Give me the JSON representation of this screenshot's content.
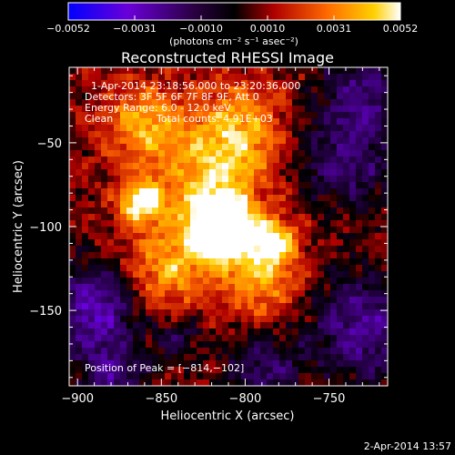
{
  "colorbar": {
    "ticks": [
      "−0.0052",
      "−0.0031",
      "−0.0010",
      "0.0010",
      "0.0031",
      "0.0052"
    ],
    "unit_label": "(photons cm⁻² s⁻¹ asec⁻²)"
  },
  "plot": {
    "title": "Reconstructed RHESSI Image",
    "xlabel": "Heliocentric X (arcsec)",
    "ylabel": "Heliocentric Y (arcsec)",
    "xticks": [
      "−900",
      "−850",
      "−800",
      "−750"
    ],
    "yticks": [
      "−50",
      "−100",
      "−150"
    ]
  },
  "info": {
    "time_range": "1-Apr-2014 23:18:56.000 to 23:20:36.000",
    "detectors": "Detectors: 3F 5F 6F 7F 8F 9F, Att 0",
    "energy": "Energy Range: 6.0 - 12.0 keV",
    "method": "Clean",
    "counts": "Total counts: 4.91E+03"
  },
  "peak_label": "Position of Peak = [−814,−102]",
  "timestamp": "2-Apr-2014 13:57",
  "chart_data": {
    "type": "heatmap",
    "title": "Reconstructed RHESSI Image",
    "xlabel": "Heliocentric X (arcsec)",
    "ylabel": "Heliocentric Y (arcsec)",
    "xlim": [
      -905,
      -715
    ],
    "ylim": [
      -195,
      -5
    ],
    "colorbar_range": [
      -0.0052,
      0.0052
    ],
    "peak": {
      "x": -814,
      "y": -102
    },
    "colormap": [
      "#0000ff",
      "#6a00d8",
      "#2a0050",
      "#000000",
      "#b00000",
      "#ff6a00",
      "#ffd000",
      "#ffffff"
    ]
  }
}
